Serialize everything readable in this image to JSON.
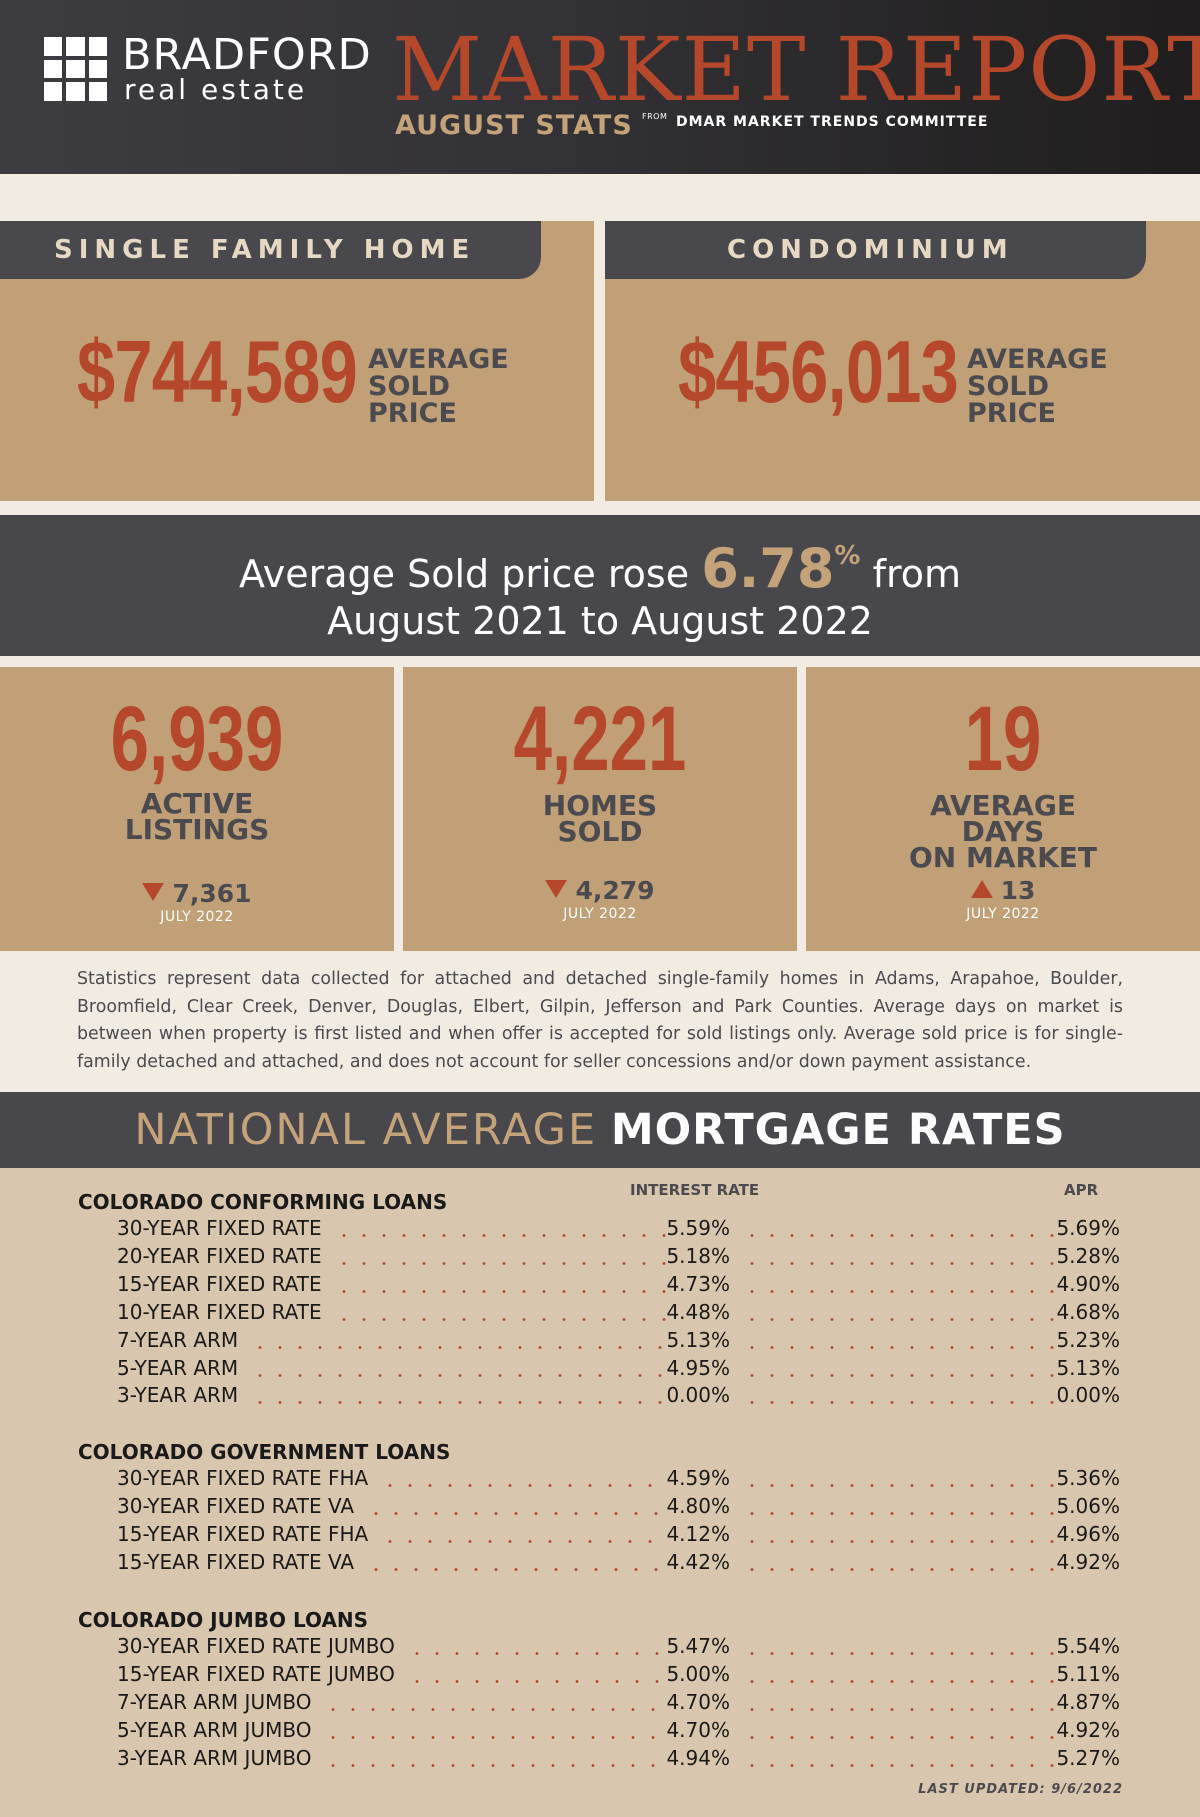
{
  "header": {
    "brand_name": "BRADFORD",
    "brand_sub": "real estate",
    "title": "MARKET REPORT",
    "subtitle": "AUGUST STATS",
    "from": "FROM",
    "source": "DMAR MARKET TRENDS COMMITTEE"
  },
  "cards": {
    "single_family": {
      "tab": "SINGLE FAMILY HOME",
      "price": "$744,589",
      "label_1": "AVERAGE",
      "label_2": "SOLD",
      "label_3": "PRICE"
    },
    "condo": {
      "tab": "CONDOMINIUM",
      "price": "$456,013",
      "label_1": "AVERAGE",
      "label_2": "SOLD",
      "label_3": "PRICE"
    }
  },
  "banner": {
    "pre": "Average Sold price rose",
    "pct": "6.78",
    "pct_sign": "%",
    "post": "from",
    "line2": "August 2021 to August 2022"
  },
  "stats": [
    {
      "number": "6,939",
      "label_1": "ACTIVE",
      "label_2": "LISTINGS",
      "direction": "down",
      "prev": "7,361",
      "month": "JULY 2022"
    },
    {
      "number": "4,221",
      "label_1": "HOMES",
      "label_2": "SOLD",
      "direction": "down",
      "prev": "4,279",
      "month": "JULY 2022"
    },
    {
      "number": "19",
      "label_1": "AVERAGE",
      "label_2": "DAYS",
      "label_3": "ON MARKET",
      "direction": "up",
      "prev": "13",
      "month": "JULY 2022"
    }
  ],
  "disclaimer": "Statistics represent data collected for attached and detached single-family homes in Adams, Arapahoe, Boulder, Broomfield, Clear Creek, Denver, Douglas, Elbert, Gilpin, Jefferson and Park Counties. Average days on market is between when property is first listed and when offer is accepted for sold listings only. Average sold price is for single-family detached and attached, and does not account for seller concessions and/or down payment assistance.",
  "mortgage": {
    "title_light": "NATIONAL AVERAGE",
    "title_bold": "MORTGAGE RATES",
    "col_interest": "INTEREST RATE",
    "col_apr": "APR",
    "groups": [
      {
        "title": "COLORADO CONFORMING LOANS",
        "rows": [
          {
            "label": "30-YEAR FIXED RATE",
            "rate": "5.59%",
            "apr": "5.69%"
          },
          {
            "label": "20-YEAR FIXED RATE",
            "rate": "5.18%",
            "apr": "5.28%"
          },
          {
            "label": "15-YEAR FIXED RATE",
            "rate": "4.73%",
            "apr": "4.90%"
          },
          {
            "label": "10-YEAR FIXED RATE",
            "rate": "4.48%",
            "apr": "4.68%"
          },
          {
            "label": "7-YEAR ARM",
            "rate": "5.13%",
            "apr": "5.23%"
          },
          {
            "label": "5-YEAR ARM",
            "rate": "4.95%",
            "apr": "5.13%"
          },
          {
            "label": "3-YEAR ARM",
            "rate": "0.00%",
            "apr": "0.00%"
          }
        ]
      },
      {
        "title": "COLORADO GOVERNMENT LOANS",
        "rows": [
          {
            "label": "30-YEAR FIXED RATE FHA",
            "rate": "4.59%",
            "apr": "5.36%"
          },
          {
            "label": "30-YEAR FIXED RATE VA",
            "rate": "4.80%",
            "apr": "5.06%"
          },
          {
            "label": "15-YEAR FIXED RATE FHA",
            "rate": "4.12%",
            "apr": "4.96%"
          },
          {
            "label": "15-YEAR FIXED RATE VA",
            "rate": "4.42%",
            "apr": "4.92%"
          }
        ]
      },
      {
        "title": "COLORADO JUMBO LOANS",
        "rows": [
          {
            "label": "30-YEAR FIXED RATE JUMBO",
            "rate": "5.47%",
            "apr": "5.54%"
          },
          {
            "label": "15-YEAR FIXED RATE JUMBO",
            "rate": "5.00%",
            "apr": "5.11%"
          },
          {
            "label": "7-YEAR ARM JUMBO",
            "rate": "4.70%",
            "apr": "4.87%"
          },
          {
            "label": "5-YEAR ARM JUMBO",
            "rate": "4.70%",
            "apr": "4.92%"
          },
          {
            "label": "3-YEAR ARM JUMBO",
            "rate": "4.94%",
            "apr": "5.27%"
          }
        ]
      }
    ],
    "updated": "LAST UPDATED: 9/6/2022"
  },
  "colors": {
    "accent": "#b5472b",
    "tan": "#c1a078",
    "dark": "#48484c",
    "gold": "#c4a27a",
    "cream": "#f2ebe2",
    "light_tan": "#d9c6ae"
  }
}
